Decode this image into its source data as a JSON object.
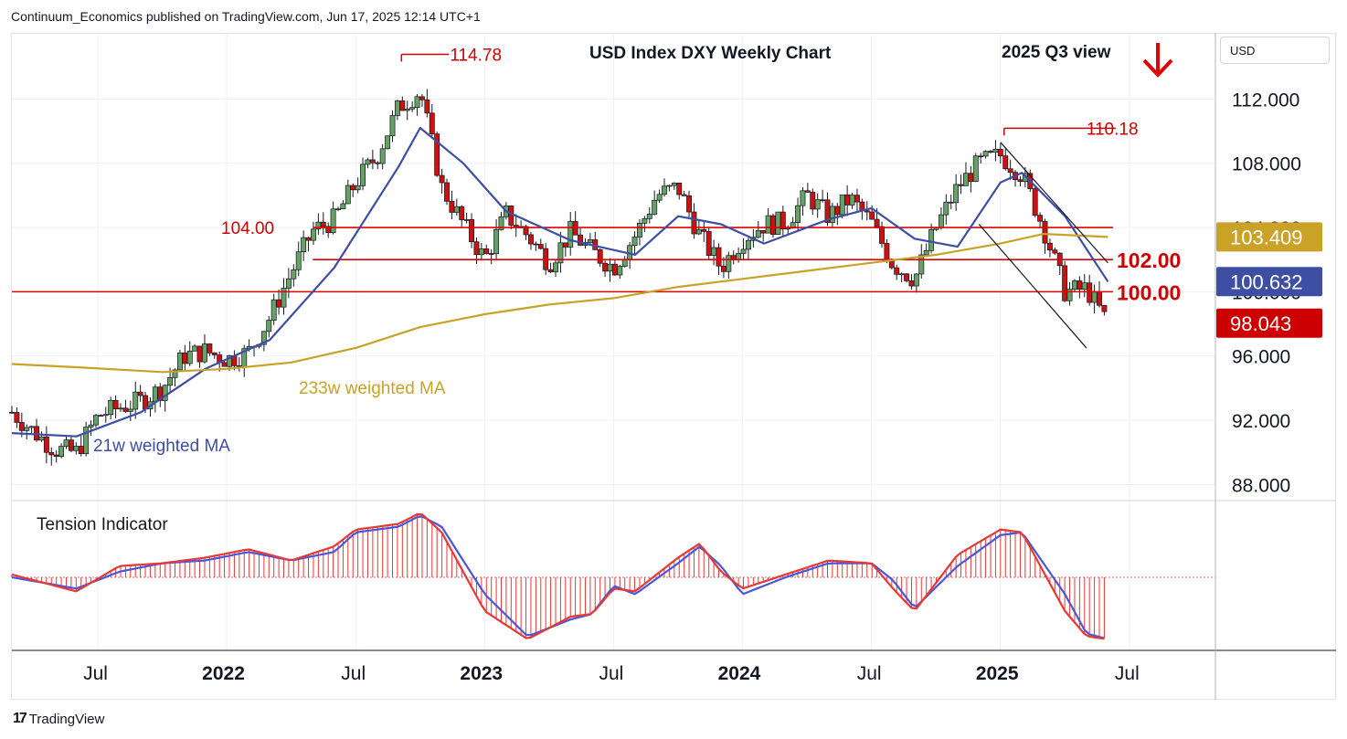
{
  "header": {
    "published": "Continuum_Economics published on TradingView.com, Jun 17, 2025 12:14 UTC+1"
  },
  "brand": {
    "logo": "17",
    "name": "TradingView"
  },
  "currency_button": {
    "label": "USD"
  },
  "chart_data": [
    {
      "type": "candlestick",
      "title": "USD Index DXY Weekly Chart",
      "subtitle": "2025 Q3 view",
      "view_arrow": "down-arrow-icon",
      "ylim": [
        87,
        116
      ],
      "y_ticks": [
        "112.000",
        "108.000",
        "104.000",
        "100.000",
        "96.000",
        "92.000",
        "88.000"
      ],
      "x_ticks": [
        {
          "label": "Jul",
          "date": "2021-07",
          "bold": false
        },
        {
          "label": "2022",
          "date": "2022-01",
          "bold": true
        },
        {
          "label": "Jul",
          "date": "2022-07",
          "bold": false
        },
        {
          "label": "2023",
          "date": "2023-01",
          "bold": true
        },
        {
          "label": "Jul",
          "date": "2023-07",
          "bold": false
        },
        {
          "label": "2024",
          "date": "2024-01",
          "bold": true
        },
        {
          "label": "Jul",
          "date": "2024-07",
          "bold": false
        },
        {
          "label": "2025",
          "date": "2025-01",
          "bold": true
        },
        {
          "label": "Jul",
          "date": "2025-07",
          "bold": false
        }
      ],
      "x_range": [
        "2021-03",
        "2025-11"
      ],
      "price_path": [
        [
          "2021-03",
          92.5
        ],
        [
          "2021-04",
          91.3
        ],
        [
          "2021-05",
          90.2
        ],
        [
          "2021-06",
          90.0
        ],
        [
          "2021-07",
          92.3
        ],
        [
          "2021-08",
          92.8
        ],
        [
          "2021-09",
          93.2
        ],
        [
          "2021-10",
          94.0
        ],
        [
          "2021-11",
          96.0
        ],
        [
          "2021-12",
          96.3
        ],
        [
          "2022-01",
          95.8
        ],
        [
          "2022-02",
          96.2
        ],
        [
          "2022-03",
          98.4
        ],
        [
          "2022-04",
          101.2
        ],
        [
          "2022-05",
          103.8
        ],
        [
          "2022-06",
          104.5
        ],
        [
          "2022-07",
          106.8
        ],
        [
          "2022-08",
          108.5
        ],
        [
          "2022-09",
          111.5
        ],
        [
          "2022-10",
          112.5
        ],
        [
          "2022-11",
          106.5
        ],
        [
          "2022-12",
          104.2
        ],
        [
          "2023-01",
          102.0
        ],
        [
          "2023-02",
          104.8
        ],
        [
          "2023-03",
          103.5
        ],
        [
          "2023-04",
          101.8
        ],
        [
          "2023-05",
          103.7
        ],
        [
          "2023-06",
          102.5
        ],
        [
          "2023-07",
          101.5
        ],
        [
          "2023-08",
          103.5
        ],
        [
          "2023-09",
          106.0
        ],
        [
          "2023-10",
          106.5
        ],
        [
          "2023-11",
          103.5
        ],
        [
          "2023-12",
          101.5
        ],
        [
          "2024-01",
          103.3
        ],
        [
          "2024-02",
          104.2
        ],
        [
          "2024-03",
          104.3
        ],
        [
          "2024-04",
          106.0
        ],
        [
          "2024-05",
          104.7
        ],
        [
          "2024-06",
          105.8
        ],
        [
          "2024-07",
          104.3
        ],
        [
          "2024-08",
          101.7
        ],
        [
          "2024-09",
          100.8
        ],
        [
          "2024-10",
          104.0
        ],
        [
          "2024-11",
          106.5
        ],
        [
          "2024-12",
          108.0
        ],
        [
          "2025-01",
          108.5
        ],
        [
          "2025-02",
          107.3
        ],
        [
          "2025-03",
          104.0
        ],
        [
          "2025-04",
          100.0
        ],
        [
          "2025-05",
          100.2
        ],
        [
          "2025-06",
          98.04
        ]
      ],
      "series": [
        {
          "name": "21w weighted MA",
          "color": "#3d4ea3",
          "last": 100.632,
          "points": [
            [
              "2021-03",
              91.2
            ],
            [
              "2021-06",
              91.0
            ],
            [
              "2021-09",
              92.5
            ],
            [
              "2021-12",
              95.2
            ],
            [
              "2022-03",
              97.0
            ],
            [
              "2022-06",
              101.5
            ],
            [
              "2022-09",
              107.8
            ],
            [
              "2022-10",
              110.2
            ],
            [
              "2022-12",
              108.0
            ],
            [
              "2023-02",
              105.0
            ],
            [
              "2023-05",
              103.2
            ],
            [
              "2023-08",
              102.3
            ],
            [
              "2023-10",
              104.7
            ],
            [
              "2023-12",
              104.2
            ],
            [
              "2024-02",
              103.0
            ],
            [
              "2024-05",
              104.5
            ],
            [
              "2024-07",
              105.2
            ],
            [
              "2024-09",
              103.3
            ],
            [
              "2024-11",
              102.8
            ],
            [
              "2025-01",
              106.8
            ],
            [
              "2025-02",
              107.4
            ],
            [
              "2025-04",
              104.7
            ],
            [
              "2025-06",
              100.632
            ]
          ]
        },
        {
          "name": "233w weighted MA",
          "color": "#c9a227",
          "last": 103.409,
          "points": [
            [
              "2021-03",
              95.5
            ],
            [
              "2021-06",
              95.3
            ],
            [
              "2021-10",
              95.0
            ],
            [
              "2022-01",
              95.2
            ],
            [
              "2022-04",
              95.6
            ],
            [
              "2022-07",
              96.5
            ],
            [
              "2022-10",
              97.8
            ],
            [
              "2023-01",
              98.6
            ],
            [
              "2023-04",
              99.2
            ],
            [
              "2023-07",
              99.6
            ],
            [
              "2023-10",
              100.3
            ],
            [
              "2024-01",
              100.8
            ],
            [
              "2024-04",
              101.3
            ],
            [
              "2024-07",
              101.8
            ],
            [
              "2024-10",
              102.3
            ],
            [
              "2025-01",
              103.0
            ],
            [
              "2025-03",
              103.6
            ],
            [
              "2025-06",
              103.409
            ]
          ]
        }
      ],
      "last_price": 98.043,
      "axis_badges": [
        {
          "label": "103.409",
          "color": "#c9a227"
        },
        {
          "label": "100.632",
          "color": "#3d4ea3"
        },
        {
          "label": "98.043",
          "color": "#cc0000"
        }
      ],
      "annotations": [
        {
          "label": "114.78",
          "y": 114.78,
          "date": "2022-09",
          "color": "#cc0000"
        },
        {
          "label": "110.18",
          "y": 110.18,
          "date": "2025-01",
          "color": "#cc0000"
        },
        {
          "label": "104.00",
          "y": 104.0,
          "color": "#cc0000"
        },
        {
          "label": "102.00",
          "y": 102.0,
          "color": "#cc0000"
        },
        {
          "label": "100.00",
          "y": 100.0,
          "color": "#cc0000"
        }
      ],
      "channel": [
        {
          "from": [
            "2025-01",
            109.3
          ],
          "to": [
            "2025-06",
            101.8
          ]
        },
        {
          "from": [
            "2024-12",
            104.2
          ],
          "to": [
            "2025-05",
            96.5
          ]
        }
      ],
      "ma_labels": [
        "233w weighted MA",
        "21w weighted MA"
      ]
    },
    {
      "type": "area",
      "title": "Tension Indicator",
      "series": [
        {
          "name": "fast",
          "color": "#e53935",
          "points": [
            [
              "2021-03",
              0.05
            ],
            [
              "2021-06",
              -0.25
            ],
            [
              "2021-08",
              0.2
            ],
            [
              "2021-10",
              0.25
            ],
            [
              "2021-12",
              0.35
            ],
            [
              "2022-02",
              0.5
            ],
            [
              "2022-04",
              0.3
            ],
            [
              "2022-06",
              0.55
            ],
            [
              "2022-07",
              0.85
            ],
            [
              "2022-09",
              0.95
            ],
            [
              "2022-10",
              1.15
            ],
            [
              "2022-11",
              0.8
            ],
            [
              "2023-01",
              -0.6
            ],
            [
              "2023-03",
              -1.1
            ],
            [
              "2023-05",
              -0.7
            ],
            [
              "2023-06",
              -0.65
            ],
            [
              "2023-07",
              -0.2
            ],
            [
              "2023-08",
              -0.25
            ],
            [
              "2023-10",
              0.35
            ],
            [
              "2023-11",
              0.6
            ],
            [
              "2023-12",
              0.1
            ],
            [
              "2024-01",
              -0.2
            ],
            [
              "2024-03",
              0.05
            ],
            [
              "2024-05",
              0.3
            ],
            [
              "2024-07",
              0.25
            ],
            [
              "2024-08",
              -0.2
            ],
            [
              "2024-09",
              -0.6
            ],
            [
              "2024-11",
              0.4
            ],
            [
              "2025-01",
              0.85
            ],
            [
              "2025-02",
              0.8
            ],
            [
              "2025-04",
              -0.6
            ],
            [
              "2025-05",
              -1.05
            ],
            [
              "2025-06",
              -1.1
            ]
          ]
        },
        {
          "name": "slow",
          "color": "#4a57d9",
          "points": [
            [
              "2021-03",
              0.0
            ],
            [
              "2021-06",
              -0.2
            ],
            [
              "2021-08",
              0.1
            ],
            [
              "2021-10",
              0.25
            ],
            [
              "2021-12",
              0.3
            ],
            [
              "2022-02",
              0.45
            ],
            [
              "2022-04",
              0.3
            ],
            [
              "2022-06",
              0.45
            ],
            [
              "2022-07",
              0.8
            ],
            [
              "2022-09",
              0.9
            ],
            [
              "2022-10",
              1.1
            ],
            [
              "2022-11",
              0.9
            ],
            [
              "2023-01",
              -0.3
            ],
            [
              "2023-03",
              -1.05
            ],
            [
              "2023-05",
              -0.75
            ],
            [
              "2023-06",
              -0.65
            ],
            [
              "2023-07",
              -0.15
            ],
            [
              "2023-08",
              -0.3
            ],
            [
              "2023-10",
              0.25
            ],
            [
              "2023-11",
              0.55
            ],
            [
              "2023-12",
              0.2
            ],
            [
              "2024-01",
              -0.3
            ],
            [
              "2024-03",
              0.0
            ],
            [
              "2024-05",
              0.25
            ],
            [
              "2024-07",
              0.25
            ],
            [
              "2024-08",
              -0.05
            ],
            [
              "2024-09",
              -0.55
            ],
            [
              "2024-11",
              0.2
            ],
            [
              "2025-01",
              0.75
            ],
            [
              "2025-02",
              0.8
            ],
            [
              "2025-04",
              -0.3
            ],
            [
              "2025-05",
              -1.0
            ],
            [
              "2025-06",
              -1.1
            ]
          ]
        }
      ],
      "ylim": [
        -1.3,
        1.3
      ]
    }
  ],
  "colors": {
    "up": "#66a266",
    "down": "#cc1111",
    "level": "#e00000",
    "grid": "#eef0f3"
  }
}
